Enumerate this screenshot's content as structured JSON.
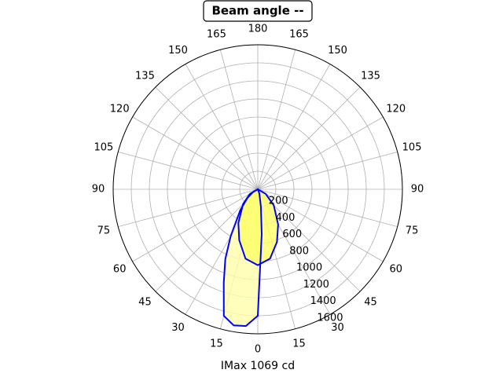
{
  "chart_data": {
    "type": "polar",
    "title": "Beam angle --",
    "xlabel": "IMax 1069 cd",
    "ylim": [
      0,
      1600
    ],
    "yticks": [
      200,
      400,
      600,
      800,
      1000,
      1200,
      1400,
      1600
    ],
    "thetaticks": [
      0,
      15,
      30,
      45,
      60,
      75,
      90,
      105,
      120,
      135,
      150,
      165,
      180,
      {
        "value": 195,
        "label": "165"
      },
      {
        "value": 210,
        "label": "150"
      },
      {
        "value": 225,
        "label": "135"
      },
      {
        "value": 240,
        "label": "120"
      },
      {
        "value": 255,
        "label": "105"
      },
      {
        "value": 270,
        "label": "90"
      },
      {
        "value": 285,
        "label": "75"
      },
      {
        "value": 300,
        "label": "60"
      },
      {
        "value": 315,
        "label": "45"
      },
      {
        "value": 330,
        "label": "30"
      },
      {
        "value": 345,
        "label": "15"
      }
    ],
    "grid": true,
    "series": [
      {
        "color": "#0000ff",
        "fill_color": "#ffffaa",
        "x": [
          -90,
          -20,
          -10,
          -5,
          0,
          5,
          10,
          15,
          20,
          25,
          30,
          40,
          50,
          60,
          90
        ],
        "values": [
          0,
          50,
          200,
          500,
          1400,
          1520,
          1530,
          1450,
          1100,
          850,
          600,
          300,
          150,
          60,
          0
        ]
      },
      {
        "color": "#0000ff",
        "fill_color": "#ffff66",
        "x": [
          -90,
          -60,
          -45,
          -30,
          -20,
          -10,
          0,
          10,
          20,
          30,
          45,
          60,
          90
        ],
        "values": [
          0,
          100,
          250,
          450,
          620,
          780,
          840,
          780,
          600,
          430,
          230,
          100,
          0
        ]
      }
    ]
  }
}
